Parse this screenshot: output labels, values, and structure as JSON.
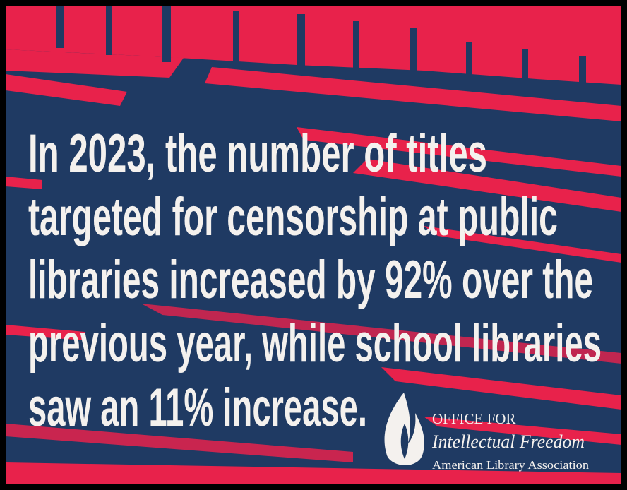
{
  "headline": {
    "lines": [
      "In 2023, the number of titles",
      "targeted for censorship at public",
      "libraries increased by 92% over the",
      "previous year, while school libraries",
      "saw an 11% increase."
    ]
  },
  "logo": {
    "line1": "OFFICE FOR",
    "line2": "Intellectual Freedom",
    "line3": "American Library Association"
  }
}
